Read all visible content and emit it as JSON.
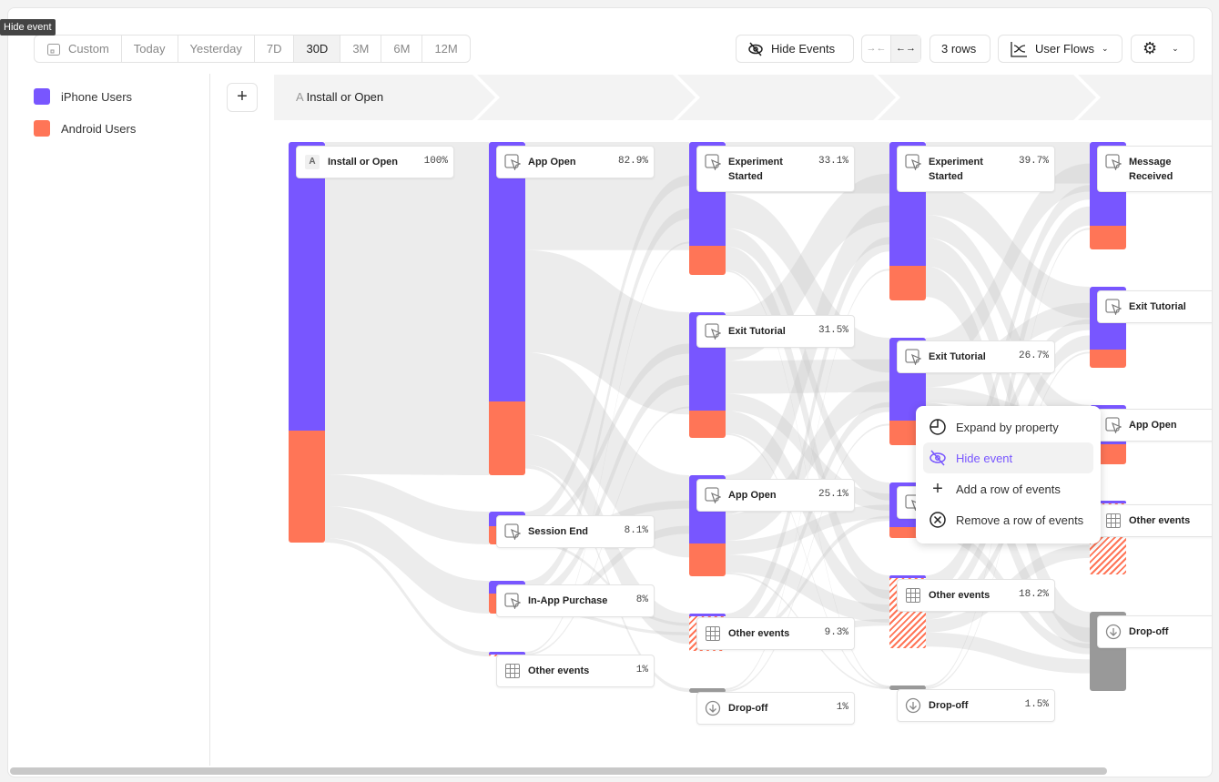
{
  "tooltip": "Hide event",
  "date_range": {
    "options": [
      "Custom",
      "Today",
      "Yesterday",
      "7D",
      "30D",
      "3M",
      "6M",
      "12M"
    ],
    "selected": "30D"
  },
  "toolbar": {
    "hide_events": "Hide Events",
    "rows": "3 rows",
    "view": "User Flows"
  },
  "legend": [
    {
      "label": "iPhone Users",
      "color": "#7856ff"
    },
    {
      "label": "Android Users",
      "color": "#ff7557"
    }
  ],
  "colors": {
    "iphone": "#7856ff",
    "android": "#ff7557",
    "dropoff": "#999999",
    "flow": "#ebebeb"
  },
  "header": {
    "step_letter": "A",
    "step_label": "Install or Open"
  },
  "columns": [
    [
      {
        "label": "Install or Open",
        "pct": "100%",
        "icon": "letter-a",
        "iphone_share": 0.72
      }
    ],
    [
      {
        "label": "App Open",
        "pct": "82.9%",
        "icon": "cursor",
        "iphone_share": 0.78
      },
      {
        "label": "Session End",
        "pct": "8.1%",
        "icon": "cursor",
        "iphone_share": 0.45
      },
      {
        "label": "In-App Purchase",
        "pct": "8%",
        "icon": "cursor",
        "iphone_share": 0.4
      },
      {
        "label": "Other events",
        "pct": "1%",
        "icon": "grid",
        "other": true
      }
    ],
    [
      {
        "label": "Experiment Started",
        "pct": "33.1%",
        "icon": "cursor",
        "iphone_share": 0.78
      },
      {
        "label": "Exit Tutorial",
        "pct": "31.5%",
        "icon": "cursor",
        "iphone_share": 0.78
      },
      {
        "label": "App Open",
        "pct": "25.1%",
        "icon": "cursor",
        "iphone_share": 0.68
      },
      {
        "label": "Other events",
        "pct": "9.3%",
        "icon": "grid",
        "other": true
      },
      {
        "label": "Drop-off",
        "pct": "1%",
        "icon": "drop",
        "dropoff": true
      }
    ],
    [
      {
        "label": "Experiment Started",
        "pct": "39.7%",
        "icon": "cursor",
        "iphone_share": 0.78
      },
      {
        "label": "Exit Tutorial",
        "pct": "26.7%",
        "icon": "cursor",
        "iphone_share": 0.77
      },
      {
        "label": "",
        "pct": "",
        "icon": "cursor",
        "iphone_share": 0.8
      },
      {
        "label": "Other events",
        "pct": "18.2%",
        "icon": "grid",
        "other": true
      },
      {
        "label": "Drop-off",
        "pct": "1.5%",
        "icon": "drop",
        "dropoff": true
      }
    ],
    [
      {
        "label": "Message Received",
        "pct": "",
        "icon": "cursor",
        "iphone_share": 0.78
      },
      {
        "label": "Exit Tutorial",
        "pct": "",
        "icon": "cursor",
        "iphone_share": 0.78
      },
      {
        "label": "App Open",
        "pct": "",
        "icon": "cursor",
        "iphone_share": 0.66
      },
      {
        "label": "Other events",
        "pct": "",
        "icon": "grid",
        "other": true
      },
      {
        "label": "Drop-off",
        "pct": "",
        "icon": "drop",
        "dropoff": true
      }
    ]
  ],
  "context_menu": [
    {
      "label": "Expand by property",
      "icon": "expand-icon"
    },
    {
      "label": "Hide event",
      "icon": "eye-off-icon",
      "highlighted": true
    },
    {
      "label": "Add a row of events",
      "icon": "plus-icon"
    },
    {
      "label": "Remove a row of events",
      "icon": "x-circle-icon"
    }
  ]
}
